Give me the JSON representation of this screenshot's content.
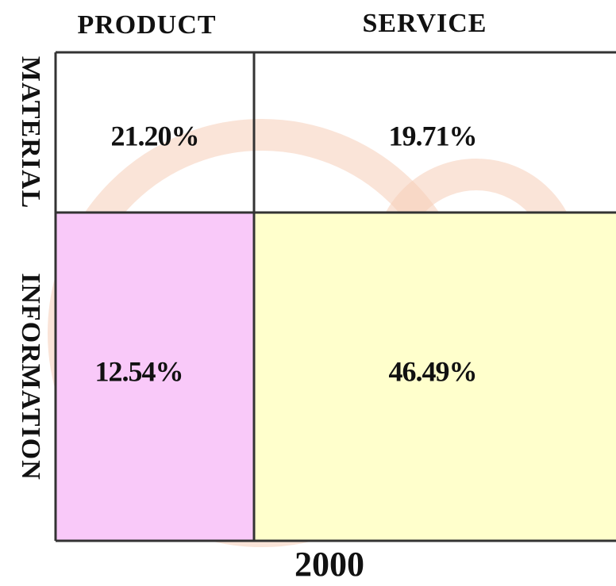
{
  "table": {
    "columns": [
      "PRODUCT",
      "SERVICE"
    ],
    "rows": [
      {
        "label": "MATERIAL",
        "cells": [
          "21.20%",
          "19.71%"
        ]
      },
      {
        "label": "INFORMATION",
        "cells": [
          "12.54%",
          "46.49%"
        ]
      }
    ],
    "caption": "2000"
  }
}
